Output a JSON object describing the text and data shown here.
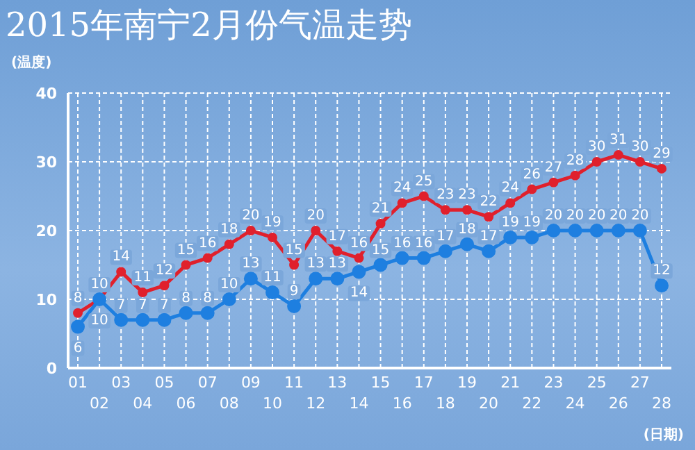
{
  "chart_data": {
    "type": "line",
    "title": "2015年南宁2月份气温走势",
    "ylabel": "(温度)",
    "xlabel": "(日期)",
    "categories": [
      "01",
      "02",
      "03",
      "04",
      "05",
      "06",
      "07",
      "08",
      "09",
      "10",
      "11",
      "12",
      "13",
      "14",
      "15",
      "16",
      "17",
      "18",
      "19",
      "20",
      "21",
      "22",
      "23",
      "24",
      "25",
      "26",
      "27",
      "28"
    ],
    "series": [
      {
        "color": "#e0202c",
        "values": [
          8,
          10,
          14,
          11,
          12,
          15,
          16,
          18,
          20,
          19,
          15,
          20,
          17,
          16,
          21,
          24,
          25,
          23,
          23,
          22,
          24,
          26,
          27,
          28,
          30,
          31,
          30,
          29
        ]
      },
      {
        "color": "#1e7fe0",
        "values": [
          6,
          10,
          7,
          7,
          7,
          8,
          8,
          10,
          13,
          11,
          9,
          13,
          13,
          14,
          15,
          16,
          16,
          17,
          18,
          17,
          19,
          19,
          20,
          20,
          20,
          20,
          20,
          12
        ]
      }
    ],
    "ylim": [
      0,
      40
    ],
    "yticks": [
      0,
      10,
      20,
      30,
      40
    ],
    "grid": true,
    "data_labels": true,
    "marker": "circle"
  }
}
